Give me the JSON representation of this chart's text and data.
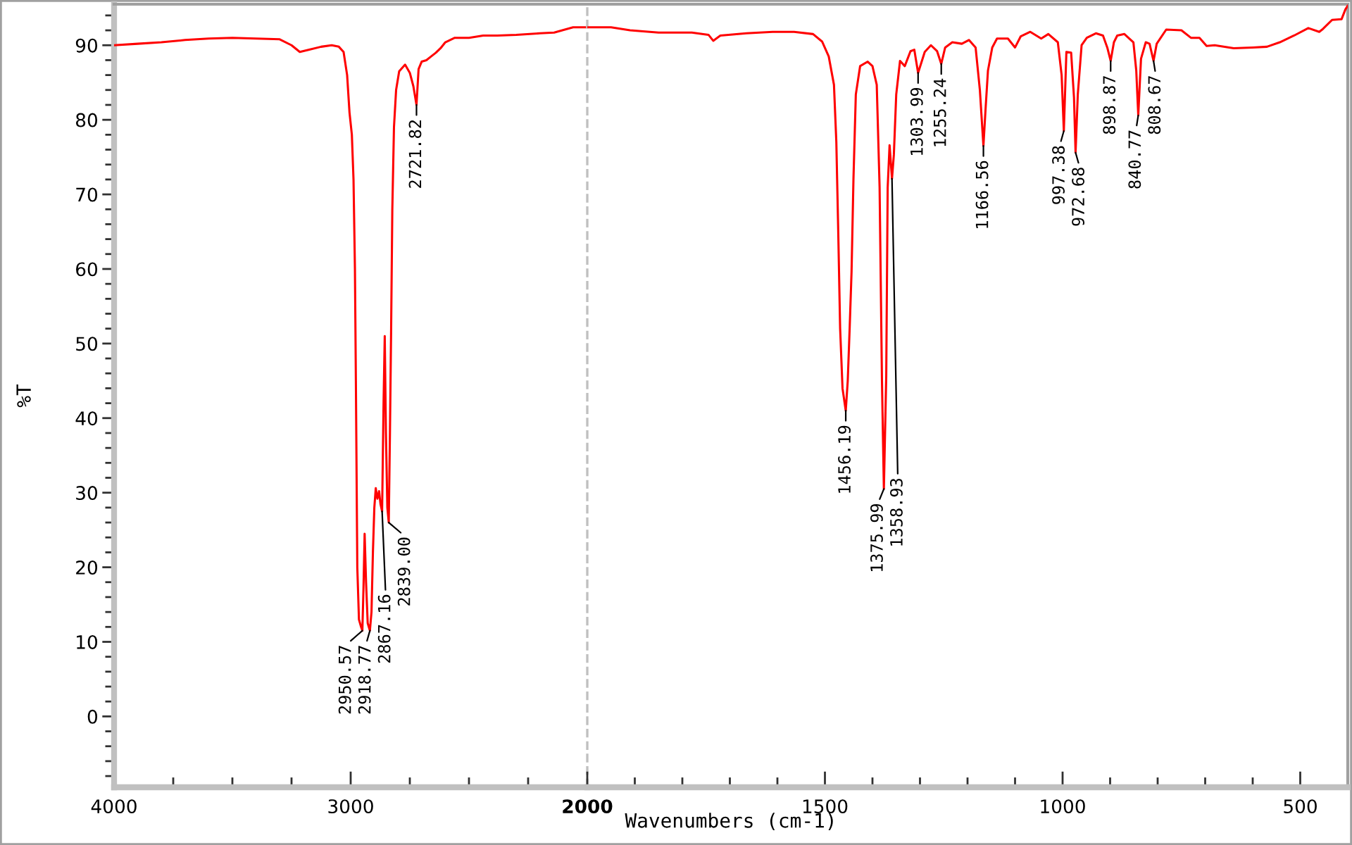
{
  "chart_data": [
    {
      "type": "line",
      "ylabel": "%T",
      "line_style": "solid",
      "x": [
        4000,
        3900,
        3800,
        3700,
        3600,
        3500,
        3400,
        3300,
        3250,
        3215,
        3175,
        3125,
        3080,
        3050,
        3030,
        3015,
        3005,
        2995,
        2988,
        2982,
        2978,
        2972,
        2965,
        2956,
        2950.57,
        2946,
        2941,
        2935,
        2928,
        2918.77,
        2912,
        2906,
        2900,
        2894,
        2887,
        2880,
        2874,
        2867.16,
        2861,
        2856,
        2851,
        2845,
        2839,
        2834,
        2829,
        2824,
        2817,
        2808,
        2795,
        2770,
        2750,
        2735,
        2721.82,
        2713,
        2700,
        2680,
        2660,
        2640,
        2620,
        2600,
        2560,
        2500,
        2440,
        2380,
        2300,
        2200,
        2140,
        2060,
        2000
      ],
      "series": [
        {
          "color": "#ff0000",
          "values": [
            90.0,
            90.2,
            90.4,
            90.7,
            90.9,
            91.0,
            90.9,
            90.8,
            90.0,
            89.1,
            89.4,
            89.8,
            90.0,
            89.8,
            89.1,
            86.0,
            81.0,
            78.0,
            72.0,
            60.0,
            45.0,
            20.0,
            13.0,
            12.0,
            11.5,
            17.0,
            24.5,
            18.0,
            12.5,
            11.5,
            14.0,
            22.0,
            28.0,
            30.6,
            29.2,
            30.2,
            28.5,
            27.5,
            42.0,
            51.0,
            38.0,
            28.0,
            26.0,
            38.0,
            52.0,
            68.0,
            79.0,
            84.0,
            86.5,
            87.4,
            86.3,
            84.5,
            82.0,
            86.8,
            87.8,
            88.0,
            88.5,
            89.0,
            89.6,
            90.4,
            91.0,
            91.0,
            91.3,
            91.3,
            91.4,
            91.6,
            91.7,
            92.4,
            92.4
          ]
        }
      ],
      "xlim": [
        4000,
        2000
      ],
      "ylim": [
        -9.5,
        95.5
      ],
      "xticks": [
        4000,
        {
          "value": 3750,
          "label": null
        },
        {
          "value": 3500,
          "label": null
        },
        {
          "value": 3250,
          "label": null
        },
        3000,
        {
          "value": 2750,
          "label": null
        },
        {
          "value": 2500,
          "label": null
        },
        {
          "value": 2250,
          "label": null
        }
      ],
      "yticks": [
        {
          "value": -8,
          "label": null
        },
        {
          "value": -6,
          "label": null
        },
        {
          "value": -4,
          "label": null
        },
        {
          "value": -2,
          "label": null
        },
        0,
        {
          "value": 2,
          "label": null
        },
        {
          "value": 4,
          "label": null
        },
        {
          "value": 6,
          "label": null
        },
        {
          "value": 8,
          "label": null
        },
        10,
        {
          "value": 12,
          "label": null
        },
        {
          "value": 14,
          "label": null
        },
        {
          "value": 16,
          "label": null
        },
        {
          "value": 18,
          "label": null
        },
        20,
        {
          "value": 22,
          "label": null
        },
        {
          "value": 24,
          "label": null
        },
        {
          "value": 26,
          "label": null
        },
        {
          "value": 28,
          "label": null
        },
        30,
        {
          "value": 32,
          "label": null
        },
        {
          "value": 34,
          "label": null
        },
        {
          "value": 36,
          "label": null
        },
        {
          "value": 38,
          "label": null
        },
        40,
        {
          "value": 42,
          "label": null
        },
        {
          "value": 44,
          "label": null
        },
        {
          "value": 46,
          "label": null
        },
        {
          "value": 48,
          "label": null
        },
        50,
        {
          "value": 52,
          "label": null
        },
        {
          "value": 54,
          "label": null
        },
        {
          "value": 56,
          "label": null
        },
        {
          "value": 58,
          "label": null
        },
        60,
        {
          "value": 62,
          "label": null
        },
        {
          "value": 64,
          "label": null
        },
        {
          "value": 66,
          "label": null
        },
        {
          "value": 68,
          "label": null
        },
        70,
        {
          "value": 72,
          "label": null
        },
        {
          "value": 74,
          "label": null
        },
        {
          "value": 76,
          "label": null
        },
        {
          "value": 78,
          "label": null
        },
        80,
        {
          "value": 82,
          "label": null
        },
        {
          "value": 84,
          "label": null
        },
        {
          "value": 86,
          "label": null
        },
        {
          "value": 88,
          "label": null
        },
        90,
        {
          "value": 92,
          "label": null
        },
        {
          "value": 94,
          "label": null
        }
      ],
      "annotations": [
        {
          "text": "2950.57",
          "x": 2950.57,
          "y": 11.5
        },
        {
          "text": "2918.77",
          "x": 2918.77,
          "y": 11.5
        },
        {
          "text": "2867.16",
          "x": 2867.16,
          "y": 27.5
        },
        {
          "text": "2839.00",
          "x": 2839,
          "y": 26.0
        },
        {
          "text": "2721.82",
          "x": 2721.82,
          "y": 82.0
        }
      ]
    },
    {
      "type": "line",
      "xlabel": "Wavenumbers (cm-1)",
      "line_style": "solid",
      "tick_labels": "x",
      "x": [
        2000,
        1950,
        1910,
        1850,
        1780,
        1745,
        1735,
        1720,
        1665,
        1610,
        1565,
        1525,
        1506,
        1492,
        1481,
        1476,
        1472,
        1468,
        1463,
        1456.19,
        1452,
        1448,
        1444,
        1440,
        1435,
        1426,
        1410,
        1400,
        1391,
        1385,
        1380,
        1375.99,
        1371,
        1368,
        1364,
        1358.93,
        1355,
        1350,
        1342,
        1332,
        1320,
        1312,
        1303.99,
        1290,
        1277,
        1264,
        1255.24,
        1247,
        1232,
        1212,
        1197,
        1183,
        1174,
        1166.56,
        1162,
        1157,
        1148,
        1138,
        1115,
        1100,
        1088,
        1068,
        1045,
        1030,
        1010,
        1002,
        997.38,
        992,
        982,
        976,
        972.68,
        968,
        960,
        949,
        930,
        915,
        906,
        898.87,
        892,
        885,
        870,
        851,
        845,
        840.77,
        835,
        825,
        817,
        808.67,
        802,
        782,
        750,
        730,
        712,
        697,
        680,
        640,
        600,
        570,
        543,
        513,
        483,
        460,
        452,
        433,
        413,
        405,
        400
      ],
      "series": [
        {
          "color": "#ff0000",
          "values": [
            92.4,
            92.4,
            92.0,
            91.7,
            91.7,
            91.4,
            90.6,
            91.3,
            91.6,
            91.8,
            91.8,
            91.5,
            90.5,
            88.5,
            84.7,
            77.0,
            65.0,
            52.0,
            44.0,
            41.0,
            45.0,
            52.0,
            59.6,
            72.0,
            83.4,
            87.2,
            87.8,
            87.2,
            84.7,
            71.0,
            45.0,
            30.5,
            45.7,
            70.9,
            76.6,
            72.1,
            75.3,
            83.4,
            87.9,
            87.2,
            89.2,
            89.4,
            86.3,
            89.1,
            90.0,
            89.2,
            87.5,
            89.7,
            90.4,
            90.2,
            90.7,
            89.7,
            84.0,
            76.5,
            81.5,
            86.6,
            89.7,
            90.9,
            90.9,
            89.7,
            91.2,
            91.8,
            90.9,
            91.5,
            90.4,
            86.0,
            78.5,
            89.1,
            89.0,
            83.0,
            75.6,
            83.4,
            90.0,
            91.0,
            91.6,
            91.3,
            89.7,
            87.9,
            90.4,
            91.3,
            91.5,
            90.4,
            86.6,
            80.6,
            88.2,
            90.4,
            90.2,
            87.9,
            90.2,
            92.1,
            92.0,
            91.0,
            91.0,
            89.9,
            90.0,
            89.6,
            89.7,
            89.8,
            90.4,
            91.3,
            92.3,
            91.8,
            92.2,
            93.4,
            93.5,
            94.8,
            95.3
          ]
        }
      ],
      "xlim": [
        2000,
        400
      ],
      "ylim": [
        -9.5,
        95.5
      ],
      "xticks": [
        2000,
        {
          "value": 1900,
          "label": null
        },
        {
          "value": 1800,
          "label": null
        },
        {
          "value": 1700,
          "label": null
        },
        {
          "value": 1600,
          "label": null
        },
        1500,
        {
          "value": 1400,
          "label": null
        },
        {
          "value": 1300,
          "label": null
        },
        {
          "value": 1200,
          "label": null
        },
        {
          "value": 1100,
          "label": null
        },
        1000,
        {
          "value": 900,
          "label": null
        },
        {
          "value": 800,
          "label": null
        },
        {
          "value": 700,
          "label": null
        },
        {
          "value": 600,
          "label": null
        },
        500
      ],
      "ref_lines": [
        {
          "axis": "x",
          "value": 2000,
          "color": "#c0c0c0",
          "line_style": "dashed"
        }
      ],
      "annotations": [
        {
          "text": "1456.19",
          "x": 1456.19,
          "y": 41.0
        },
        {
          "text": "1375.99",
          "x": 1375.99,
          "y": 30.5
        },
        {
          "text": "1358.93",
          "x": 1358.93,
          "y": 72.1
        },
        {
          "text": "1303.99",
          "x": 1303.99,
          "y": 86.3
        },
        {
          "text": "1255.24",
          "x": 1255.24,
          "y": 87.5
        },
        {
          "text": "1166.56",
          "x": 1166.56,
          "y": 76.5
        },
        {
          "text": "997.38",
          "x": 997.38,
          "y": 78.5
        },
        {
          "text": "972.68",
          "x": 972.68,
          "y": 75.6
        },
        {
          "text": "898.87",
          "x": 898.87,
          "y": 87.9
        },
        {
          "text": "840.77",
          "x": 840.77,
          "y": 80.6
        },
        {
          "text": "808.67",
          "x": 808.67,
          "y": 87.9
        }
      ]
    }
  ]
}
